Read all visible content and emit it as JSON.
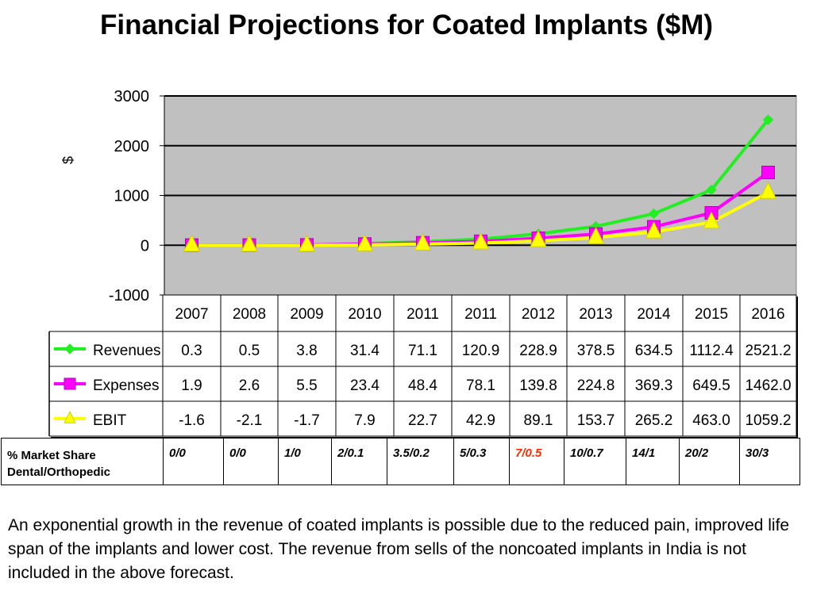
{
  "title": "Financial Projections for Coated Implants ($M)",
  "chart_data": {
    "type": "line",
    "ylabel": "$",
    "ylim": [
      -1000,
      3000
    ],
    "yticks": [
      3000,
      2000,
      1000,
      0,
      -1000
    ],
    "categories": [
      "2007",
      "2008",
      "2009",
      "2010",
      "2011",
      "2011",
      "2012",
      "2013",
      "2014",
      "2015",
      "2016"
    ],
    "grid": true,
    "plot_background": "#c0c0c0",
    "legend": "data table",
    "series": [
      {
        "name": "Revenues",
        "color": "#22ee22",
        "marker": "diamond",
        "values": [
          0.3,
          0.5,
          3.8,
          31.4,
          71.1,
          120.9,
          228.9,
          378.5,
          634.5,
          1112.4,
          2521.2
        ],
        "labels": [
          "0.3",
          "0.5",
          "3.8",
          "31.4",
          "71.1",
          "120.9",
          "228.9",
          "378.5",
          "634.5",
          "1112.4",
          "2521.2"
        ]
      },
      {
        "name": "Expenses",
        "color": "#ff00ff",
        "marker": "square",
        "values": [
          1.9,
          2.6,
          5.5,
          23.4,
          48.4,
          78.1,
          139.8,
          224.8,
          369.3,
          649.5,
          1462.0
        ],
        "labels": [
          "1.9",
          "2.6",
          "5.5",
          "23.4",
          "48.4",
          "78.1",
          "139.8",
          "224.8",
          "369.3",
          "649.5",
          "1462.0"
        ]
      },
      {
        "name": "EBIT",
        "color": "#ffff00",
        "marker": "triangle",
        "values": [
          -1.6,
          -2.1,
          -1.7,
          7.9,
          22.7,
          42.9,
          89.1,
          153.7,
          265.2,
          463.0,
          1059.2
        ],
        "labels": [
          "-1.6",
          "-2.1",
          "-1.7",
          "7.9",
          "22.7",
          "42.9",
          "89.1",
          "153.7",
          "265.2",
          "463.0",
          "1059.2"
        ]
      }
    ]
  },
  "market_share": {
    "label_line1": "% Market Share",
    "label_line2": "Dental/Orthopedic",
    "values": [
      "0/0",
      "0/0",
      "1/0",
      "2/0.1",
      "3.5/0.2",
      "5/0.3",
      "7/0.5",
      "10/0.7",
      "14/1",
      "20/2",
      "30/3"
    ],
    "highlight_color": "#ff2a00"
  },
  "note": "An exponential growth in the revenue of coated implants is possible due to the reduced pain, improved life span of the implants and lower cost. The revenue from sells of the noncoated implants in India is not included in the above forecast."
}
